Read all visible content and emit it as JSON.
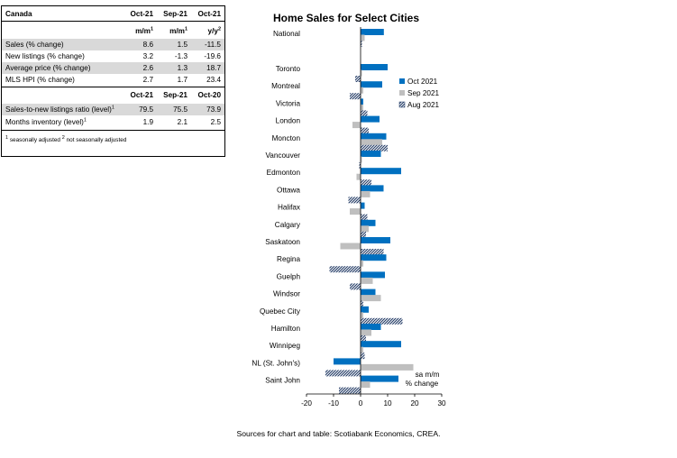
{
  "table": {
    "title": "Canada",
    "header1": [
      "Oct-21",
      "Sep-21",
      "Oct-21"
    ],
    "units": [
      "m/m",
      "m/m",
      "y/y"
    ],
    "unit_marks": [
      "1",
      "1",
      "2"
    ],
    "rows1": [
      {
        "label": "Sales  (% change)",
        "v": [
          "8.6",
          "1.5",
          "-11.5"
        ]
      },
      {
        "label": "New listings (% change)",
        "v": [
          "3.2",
          "-1.3",
          "-19.6"
        ]
      },
      {
        "label": "Average price (% change)",
        "v": [
          "2.6",
          "1.3",
          "18.7"
        ]
      },
      {
        "label": "MLS HPI (% change)",
        "v": [
          "2.7",
          "1.7",
          "23.4"
        ]
      }
    ],
    "header2": [
      "Oct-21",
      "Sep-21",
      "Oct-20"
    ],
    "rows2": [
      {
        "label": "Sales-to-new listings ratio (level)",
        "mark": "1",
        "v": [
          "79.5",
          "75.5",
          "73.9"
        ]
      },
      {
        "label": "Months inventory (level)",
        "mark": "1",
        "v": [
          "1.9",
          "2.1",
          "2.5"
        ]
      }
    ],
    "footnote_mark1": "1",
    "footnote1": " seasonally adjusted ",
    "footnote_mark2": "2",
    "footnote2": " not seasonally adjusted"
  },
  "chart_data": {
    "type": "bar",
    "orientation": "horizontal",
    "title": "Home Sales for Select Cities",
    "categories": [
      "National",
      "Toronto",
      "Montreal",
      "Victoria",
      "London",
      "Moncton",
      "Vancouver",
      "Edmonton",
      "Ottawa",
      "Halifax",
      "Calgary",
      "Saskatoon",
      "Regina",
      "Guelph",
      "Windsor",
      "Quebec City",
      "Hamilton",
      "Winnipeg",
      "NL (St. John's)",
      "Saint John"
    ],
    "gap_after_index": 0,
    "series": [
      {
        "name": "Oct 2021",
        "color": "#0070c0",
        "pattern": "solid",
        "values": [
          8.6,
          10,
          8,
          1,
          7,
          9.5,
          7.5,
          15,
          8.5,
          1.5,
          5.5,
          11,
          9.5,
          9,
          5.5,
          3,
          7.5,
          15,
          -10,
          14
        ]
      },
      {
        "name": "Sep 2021",
        "color": "#bfbfbf",
        "pattern": "solid",
        "values": [
          1.5,
          0.5,
          1,
          1,
          -3,
          8,
          0.5,
          -1.5,
          3.5,
          -4,
          3,
          -7.5,
          1,
          4.5,
          7.5,
          1,
          4,
          1,
          19.5,
          3.5
        ]
      },
      {
        "name": "Aug 2021",
        "color": "#1f3864",
        "pattern": "hatch",
        "values": [
          0.5,
          -2,
          -4,
          2.5,
          3,
          10,
          -0.5,
          4,
          -4.5,
          2.5,
          2,
          8.5,
          -11.5,
          -4,
          1,
          15.5,
          2,
          1.5,
          -13,
          -8
        ]
      }
    ],
    "xlim": [
      -20,
      30
    ],
    "xticks": [
      -20,
      -10,
      0,
      10,
      20,
      30
    ],
    "xlabel_lines": [
      "sa m/m",
      "% change"
    ],
    "legend_position": "right",
    "grid": false
  },
  "source": "Sources for chart and table: Scotiabank Economics, CREA."
}
